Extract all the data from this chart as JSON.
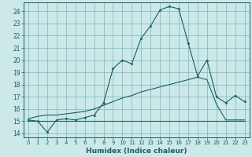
{
  "background_color": "#cce8e8",
  "grid_color": "#7ab8b8",
  "line_color": "#1a5f5f",
  "xlabel": "Humidex (Indice chaleur)",
  "xlim": [
    -0.5,
    23.5
  ],
  "ylim": [
    13.7,
    24.7
  ],
  "yticks": [
    14,
    15,
    16,
    17,
    18,
    19,
    20,
    21,
    22,
    23,
    24
  ],
  "xticks": [
    0,
    1,
    2,
    3,
    4,
    5,
    6,
    7,
    8,
    9,
    10,
    11,
    12,
    13,
    14,
    15,
    16,
    17,
    18,
    19,
    20,
    21,
    22,
    23
  ],
  "curve1_x": [
    0,
    1,
    2,
    3,
    4,
    5,
    6,
    7,
    8,
    9,
    10,
    11,
    12,
    13,
    14,
    15,
    16,
    17,
    18,
    19,
    20,
    21,
    22,
    23
  ],
  "curve1_y": [
    15.1,
    15.0,
    14.1,
    15.1,
    15.2,
    15.1,
    15.3,
    15.5,
    16.5,
    19.3,
    20.0,
    19.7,
    21.8,
    22.8,
    24.1,
    24.4,
    24.2,
    21.4,
    18.7,
    20.0,
    17.0,
    16.5,
    17.1,
    16.6
  ],
  "curve2_x": [
    0,
    1,
    2,
    3,
    4,
    5,
    6,
    7,
    8,
    9,
    10,
    11,
    12,
    13,
    14,
    15,
    16,
    17,
    18,
    19,
    20,
    21,
    22,
    23
  ],
  "curve2_y": [
    15.2,
    15.4,
    15.5,
    15.5,
    15.6,
    15.7,
    15.8,
    16.0,
    16.3,
    16.6,
    16.9,
    17.1,
    17.4,
    17.6,
    17.8,
    18.0,
    18.2,
    18.4,
    18.6,
    18.4,
    16.4,
    15.1,
    15.1,
    15.1
  ],
  "curve3_x": [
    0,
    1,
    2,
    3,
    4,
    5,
    6,
    7,
    8,
    9,
    10,
    11,
    12,
    13,
    14,
    15,
    16,
    17,
    18,
    19,
    20,
    21,
    22,
    23
  ],
  "curve3_y": [
    15.0,
    15.0,
    15.0,
    15.0,
    15.0,
    15.0,
    15.0,
    15.0,
    15.0,
    15.0,
    15.0,
    15.0,
    15.0,
    15.0,
    15.0,
    15.0,
    15.0,
    15.0,
    15.0,
    15.0,
    15.0,
    15.0,
    15.0,
    15.0
  ]
}
